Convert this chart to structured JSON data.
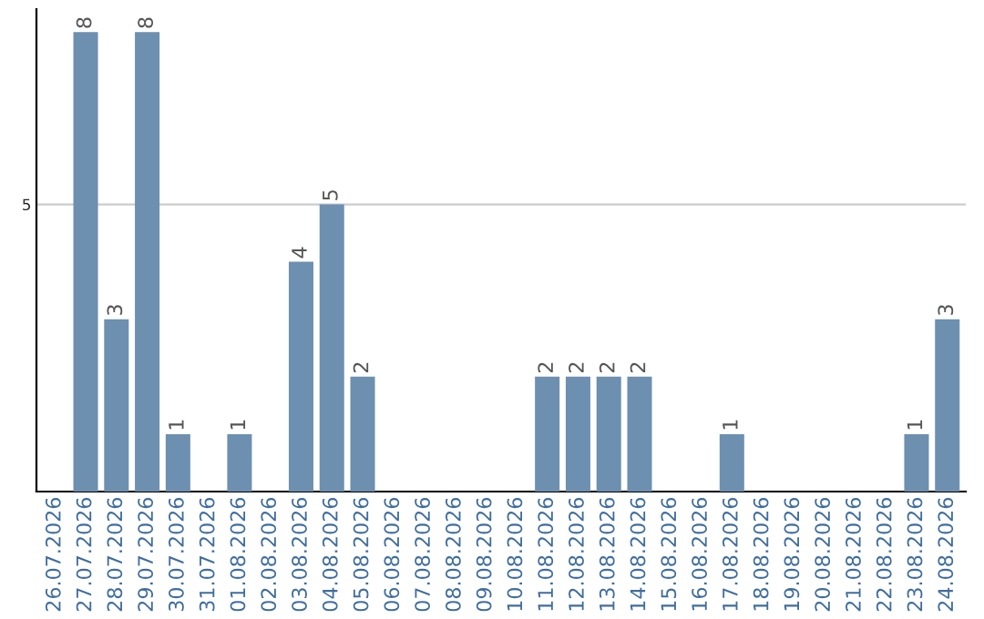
{
  "chart_data": {
    "type": "bar",
    "categories": [
      "26.07.2026",
      "27.07.2026",
      "28.07.2026",
      "29.07.2026",
      "30.07.2026",
      "31.07.2026",
      "01.08.2026",
      "02.08.2026",
      "03.08.2026",
      "04.08.2026",
      "05.08.2026",
      "06.08.2026",
      "07.08.2026",
      "08.08.2026",
      "09.08.2026",
      "10.08.2026",
      "11.08.2026",
      "12.08.2026",
      "13.08.2026",
      "14.08.2026",
      "15.08.2026",
      "16.08.2026",
      "17.08.2026",
      "18.08.2026",
      "19.08.2026",
      "20.08.2026",
      "21.08.2026",
      "22.08.2026",
      "23.08.2026",
      "24.08.2026"
    ],
    "values": [
      0,
      8,
      3,
      8,
      1,
      0,
      1,
      0,
      4,
      5,
      2,
      0,
      0,
      0,
      0,
      0,
      2,
      2,
      2,
      2,
      0,
      0,
      1,
      0,
      0,
      0,
      0,
      0,
      1,
      3
    ],
    "value_labels": [
      null,
      "8",
      "3",
      "8",
      "1",
      null,
      "1",
      null,
      "4",
      "5",
      "2",
      null,
      null,
      null,
      null,
      null,
      "2",
      "2",
      "2",
      "2",
      null,
      null,
      "1",
      null,
      null,
      null,
      null,
      null,
      "1",
      "3"
    ],
    "color": "#6d8fb0",
    "ylim": [
      0,
      8.4
    ],
    "yticks": [
      5
    ],
    "grid": "y",
    "legend": false
  }
}
